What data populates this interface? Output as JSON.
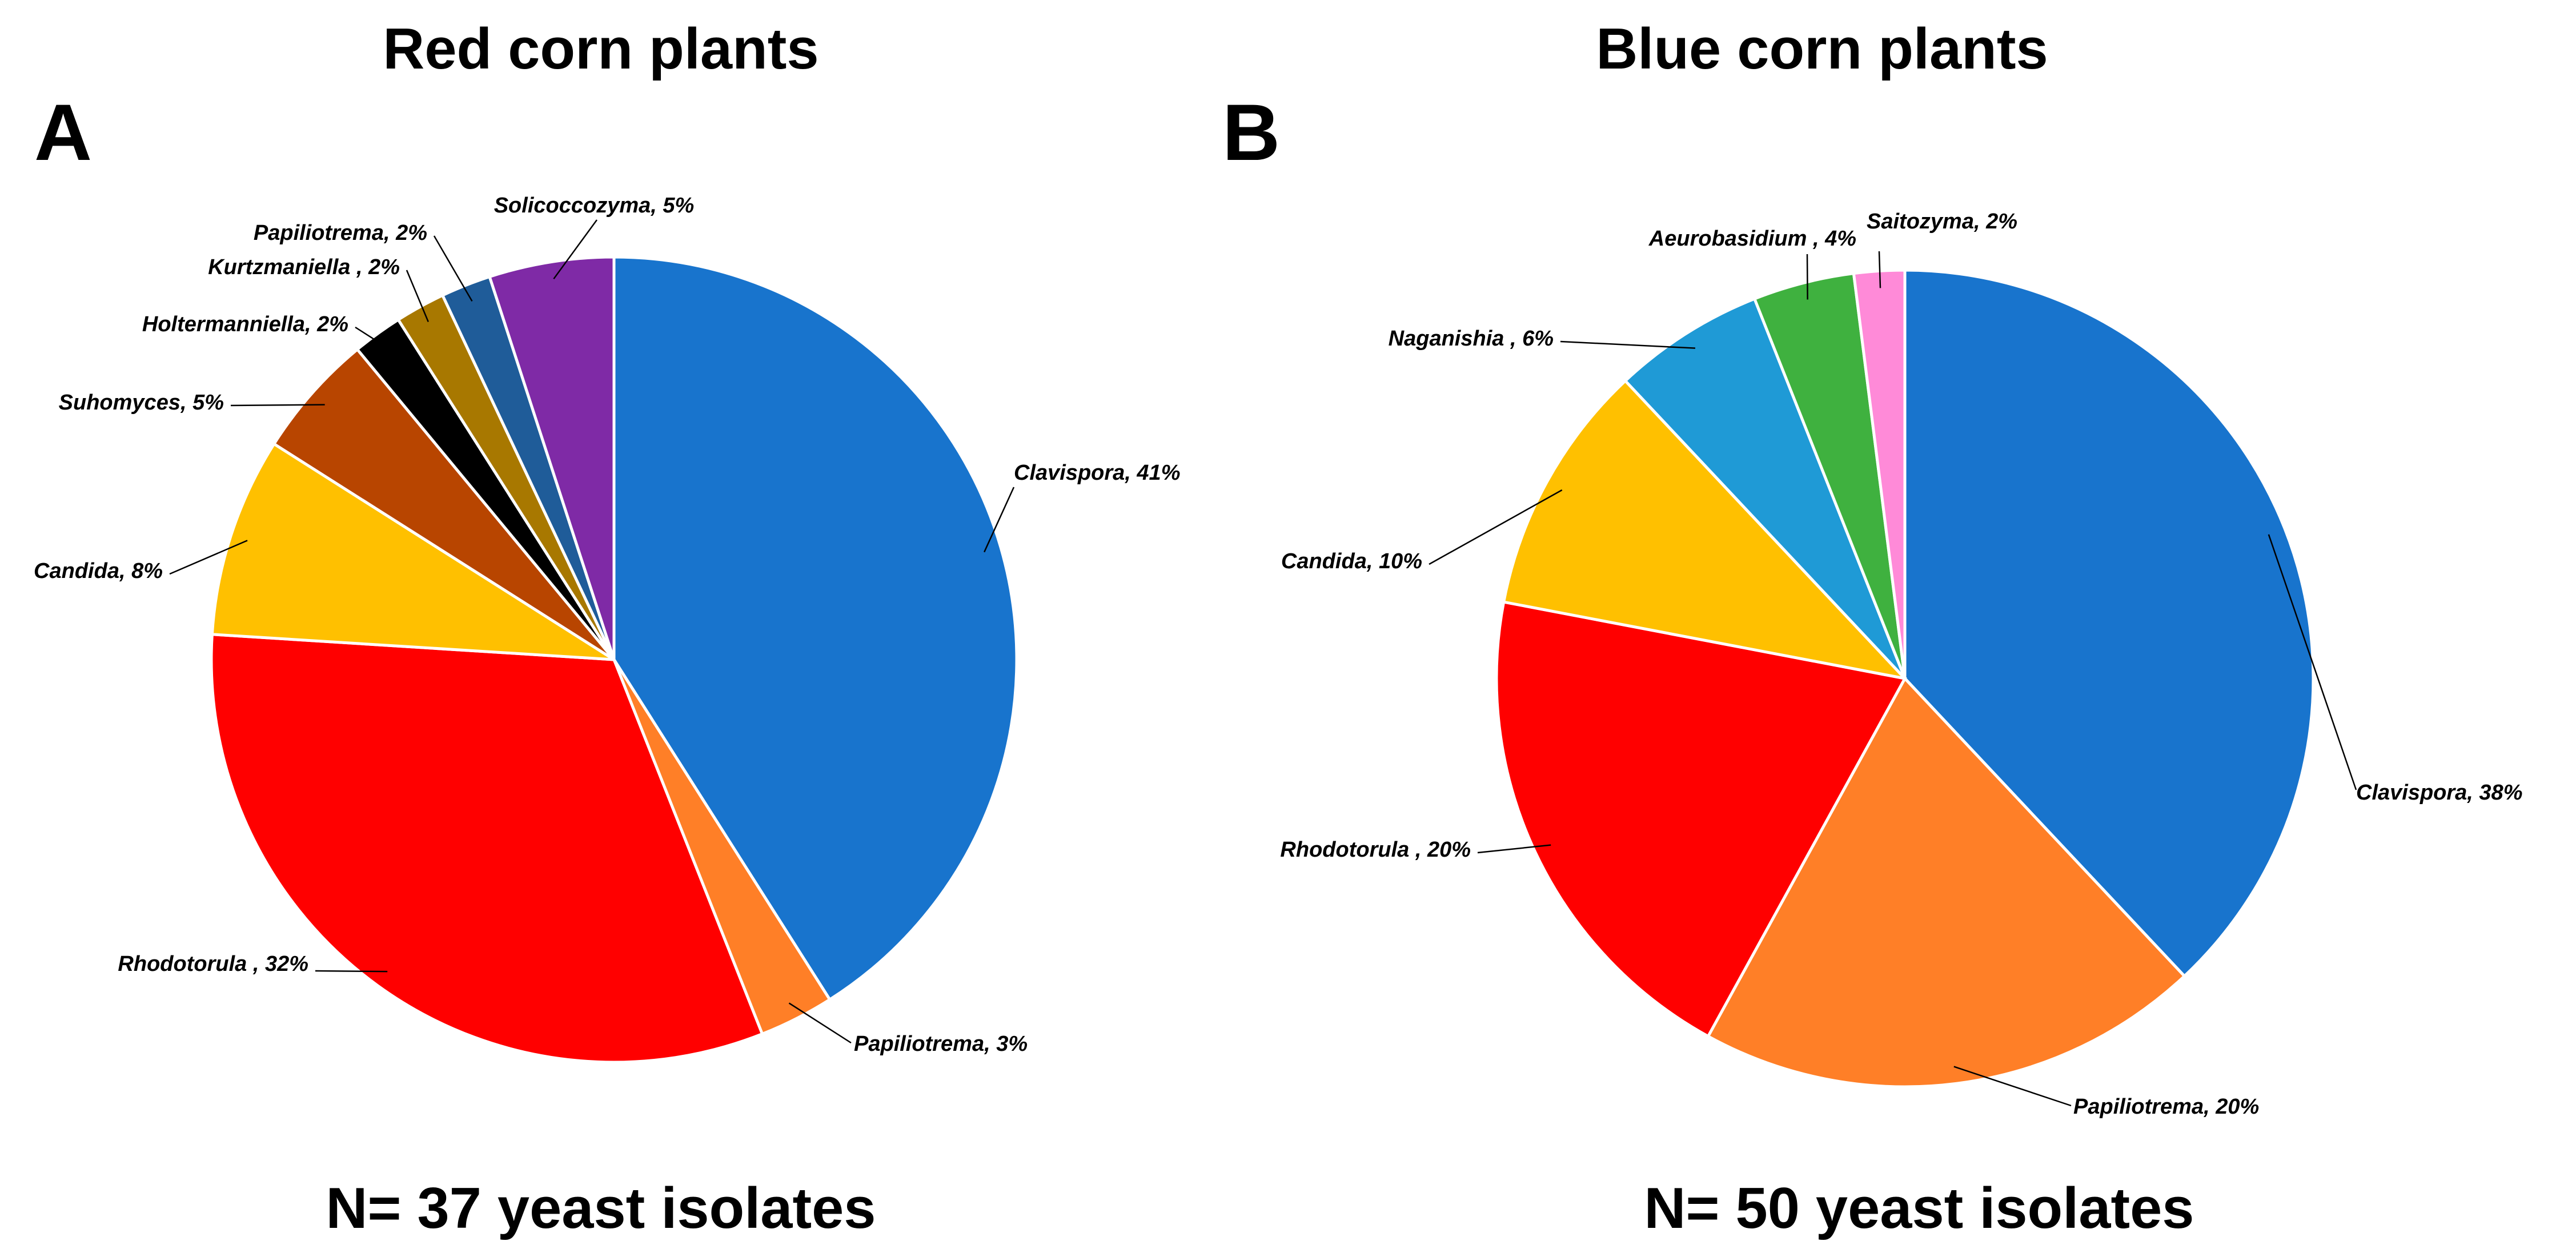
{
  "chart_data": [
    {
      "type": "pie",
      "panel": "A",
      "title": "Red corn plants",
      "footnote": "N= 37 yeast isolates",
      "slices": [
        {
          "label": "Clavispora, 41%",
          "value": 41,
          "color": "#1874CD"
        },
        {
          "label": "Papiliotrema, 3%",
          "value": 3,
          "color": "#FF7F27"
        },
        {
          "label": "Rhodotorula , 32%",
          "value": 32,
          "color": "#FF0000"
        },
        {
          "label": "Candida, 8%",
          "value": 8,
          "color": "#FFC000"
        },
        {
          "label": "Suhomyces, 5%",
          "value": 5,
          "color": "#B84500"
        },
        {
          "label": "Holtermanniella, 2%",
          "value": 2,
          "color": "#000000"
        },
        {
          "label": "Kurtzmaniella , 2%",
          "value": 2,
          "color": "#A87800"
        },
        {
          "label": "Papiliotrema, 2%",
          "value": 2,
          "color": "#1F5C99"
        },
        {
          "label": "Solicoccozyma, 5%",
          "value": 5,
          "color": "#7F2AA6"
        }
      ]
    },
    {
      "type": "pie",
      "panel": "B",
      "title": "Blue corn plants",
      "footnote": "N= 50 yeast isolates",
      "slices": [
        {
          "label": "Clavispora, 38%",
          "value": 38,
          "color": "#1874CD"
        },
        {
          "label": "Papiliotrema, 20%",
          "value": 20,
          "color": "#FF7F27"
        },
        {
          "label": "Rhodotorula , 20%",
          "value": 20,
          "color": "#FF0000"
        },
        {
          "label": "Candida, 10%",
          "value": 10,
          "color": "#FFC000"
        },
        {
          "label": "Naganishia , 6%",
          "value": 6,
          "color": "#1F9AD6"
        },
        {
          "label": "Aeurobasidium , 4%",
          "value": 4,
          "color": "#3FB13F"
        },
        {
          "label": "Saitozyma, 2%",
          "value": 2,
          "color": "#FF8AD8"
        }
      ]
    }
  ]
}
